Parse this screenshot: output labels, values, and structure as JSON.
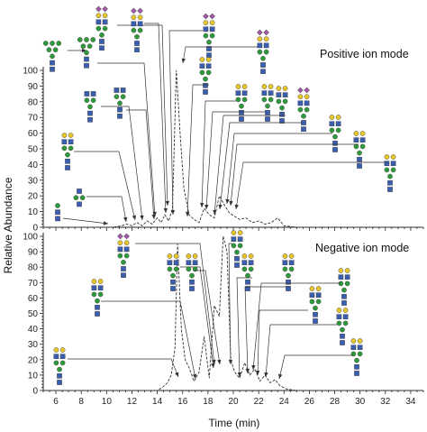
{
  "chart_data": [
    {
      "type": "line",
      "title": "Positive ion mode",
      "xlabel": "Time (min)",
      "ylabel": "Relative Abundance",
      "xlim": [
        5,
        35
      ],
      "ylim": [
        0,
        100
      ],
      "x_ticks": [
        6,
        8,
        10,
        12,
        14,
        16,
        18,
        20,
        22,
        24,
        26,
        28,
        30,
        32,
        34
      ],
      "y_ticks": [
        0,
        10,
        20,
        30,
        40,
        50,
        60,
        70,
        80,
        90,
        100
      ],
      "series": [
        {
          "x": [
            5.0,
            10.5,
            11.2,
            11.6,
            12.0,
            12.4,
            12.8,
            13.2,
            13.6,
            14.0,
            14.3,
            14.6,
            14.9,
            15.2,
            15.5,
            15.8,
            16.1,
            16.5,
            16.9,
            17.3,
            17.7,
            18.1,
            18.5,
            18.9,
            19.3,
            19.7,
            20.1,
            20.5,
            21.0,
            21.5,
            22.0,
            22.5,
            23.0,
            23.5,
            24.0,
            25.0,
            35.0
          ],
          "values": [
            0,
            0,
            1,
            2,
            1,
            3,
            1,
            4,
            2,
            6,
            3,
            8,
            4,
            12,
            100,
            60,
            25,
            8,
            5,
            3,
            12,
            8,
            6,
            20,
            14,
            9,
            7,
            5,
            6,
            3,
            4,
            2,
            3,
            6,
            1,
            0,
            0
          ]
        }
      ]
    },
    {
      "type": "line",
      "title": "Negative ion mode",
      "xlabel": "Time (min)",
      "ylabel": "Relative Abundance",
      "xlim": [
        5,
        35
      ],
      "ylim": [
        0,
        100
      ],
      "x_ticks": [
        6,
        8,
        10,
        12,
        14,
        16,
        18,
        20,
        22,
        24,
        26,
        28,
        30,
        32,
        34
      ],
      "y_ticks": [
        0,
        10,
        20,
        30,
        40,
        50,
        60,
        70,
        80,
        90,
        100
      ],
      "series": [
        {
          "x": [
            5.0,
            14.0,
            14.4,
            14.8,
            15.1,
            15.4,
            15.6,
            15.9,
            16.2,
            16.5,
            16.9,
            17.3,
            17.7,
            18.1,
            18.5,
            18.9,
            19.2,
            19.5,
            19.8,
            20.1,
            20.5,
            20.9,
            21.3,
            21.7,
            22.1,
            22.5,
            22.9,
            23.3,
            23.7,
            24.2,
            25.0,
            35.0
          ],
          "values": [
            0,
            0,
            2,
            5,
            10,
            28,
            95,
            40,
            20,
            15,
            6,
            12,
            35,
            8,
            55,
            48,
            100,
            90,
            20,
            12,
            8,
            18,
            10,
            14,
            6,
            10,
            5,
            7,
            3,
            1,
            0,
            0
          ]
        }
      ]
    }
  ],
  "figure": {
    "xlabel": "Time (min)",
    "ylabel": "Relative Abundance",
    "positive_label": "Positive ion mode",
    "negative_label": "Negative ion mode"
  }
}
